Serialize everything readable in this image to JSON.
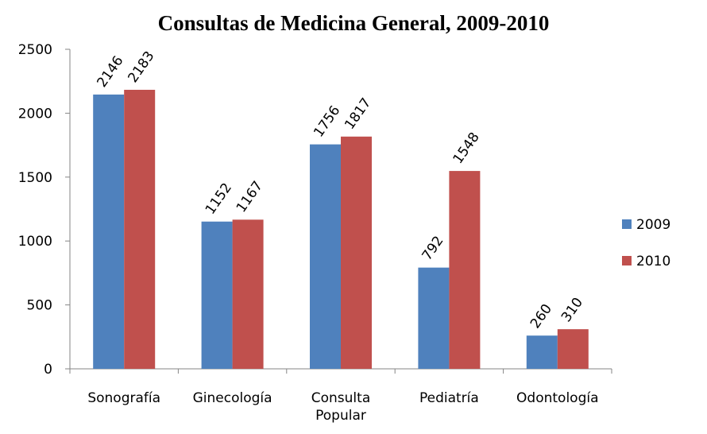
{
  "chart_data": {
    "type": "bar",
    "title": "Consultas de Medicina General, 2009-2010",
    "categories": [
      "Sonografía",
      "Ginecología",
      "Consulta Popular",
      "Pediatría",
      "Odontología"
    ],
    "series": [
      {
        "name": "2009",
        "color": "#4f81bd",
        "values": [
          2146,
          1152,
          1756,
          792,
          260
        ]
      },
      {
        "name": "2010",
        "color": "#c0504d",
        "values": [
          2183,
          1167,
          1817,
          1548,
          310
        ]
      }
    ],
    "ylim": [
      0,
      2500
    ],
    "yticks": [
      0,
      500,
      1000,
      1500,
      2000,
      2500
    ],
    "grid": false,
    "legend": "right"
  }
}
